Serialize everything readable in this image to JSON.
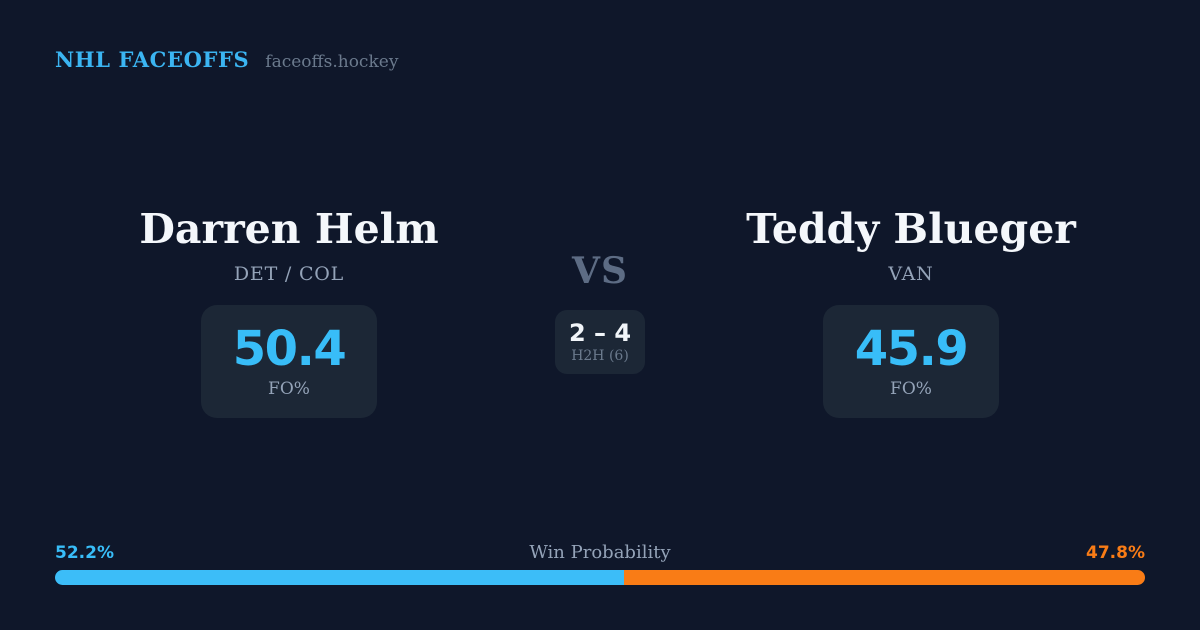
{
  "page": {
    "background": "#0f172a",
    "panel_color": "#1c2736",
    "accent_blue": "#38bdf8",
    "accent_orange": "#f97c16"
  },
  "header": {
    "brand": "NHL FACEOFFS",
    "site": "faceoffs.hockey"
  },
  "matchup": {
    "vs_label": "VS",
    "h2h": {
      "score": "2 – 4",
      "label": "H2H (6)"
    },
    "players": [
      {
        "name": "Darren Helm",
        "team": "DET / COL",
        "stat_value": "50.4",
        "stat_label": "FO%"
      },
      {
        "name": "Teddy Blueger",
        "team": "VAN",
        "stat_value": "45.9",
        "stat_label": "FO%"
      }
    ]
  },
  "win_probability": {
    "title": "Win Probability",
    "left_pct": "52.2%",
    "right_pct": "47.8%",
    "left_value": 52.2,
    "right_value": 47.8
  },
  "chart_data": {
    "type": "bar",
    "title": "Win Probability",
    "categories": [
      "Darren Helm",
      "Teddy Blueger"
    ],
    "series": [
      {
        "name": "Win Probability %",
        "values": [
          52.2,
          47.8
        ]
      },
      {
        "name": "Faceoff Win % (FO%)",
        "values": [
          50.4,
          45.9
        ]
      }
    ],
    "annotations": [
      "H2H record over 6 games: 2 – 4"
    ],
    "xlim": [
      0,
      100
    ],
    "legend_position": "none",
    "colors": [
      "#3cbdf8",
      "#f97c16"
    ]
  }
}
